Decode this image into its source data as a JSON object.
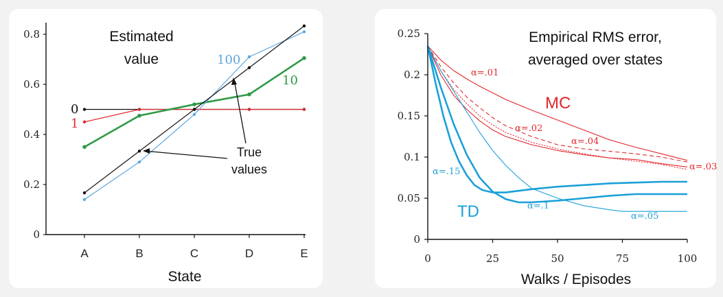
{
  "colors": {
    "black": "#111111",
    "red": "#e0262b",
    "green": "#2e9a47",
    "lightblue": "#5ea7de",
    "td_blue": "#1aa0d8"
  },
  "chart_data": [
    {
      "type": "line",
      "xlabel": "State",
      "categories": [
        "A",
        "B",
        "C",
        "D",
        "E"
      ],
      "ylim": [
        0,
        0.85
      ],
      "yticks": [
        "0",
        "0.2",
        "0.4",
        "0.6",
        "0.8"
      ],
      "annotations": {
        "title": [
          "Estimated",
          "value"
        ],
        "true_values": [
          "True",
          "values"
        ],
        "label_0": "0",
        "label_1": "1",
        "label_10": "10",
        "label_100": "100"
      },
      "series": [
        {
          "name": "0",
          "color": "#111111",
          "values": [
            0.5,
            0.5,
            0.5,
            0.5,
            0.5
          ]
        },
        {
          "name": "1",
          "color": "#e0262b",
          "values": [
            0.45,
            0.5,
            0.5,
            0.5,
            0.5
          ]
        },
        {
          "name": "10",
          "color": "#2e9a47",
          "values": [
            0.35,
            0.475,
            0.52,
            0.56,
            0.705
          ]
        },
        {
          "name": "100",
          "color": "#5ea7de",
          "values": [
            0.14,
            0.29,
            0.48,
            0.71,
            0.81
          ]
        },
        {
          "name": "True values",
          "color": "#111111",
          "values": [
            0.1667,
            0.3333,
            0.5,
            0.6667,
            0.8333
          ]
        }
      ]
    },
    {
      "type": "line",
      "xlabel": "Walks / Episodes",
      "xlim": [
        0,
        100
      ],
      "ylim": [
        0,
        0.25
      ],
      "xticks": [
        "0",
        "25",
        "50",
        "75",
        "100"
      ],
      "yticks": [
        "0",
        "0.05",
        "0.1",
        "0.15",
        "0.2",
        "0.25"
      ],
      "annotations": {
        "title": [
          "Empirical RMS error,",
          "averaged over states"
        ],
        "mc": "MC",
        "td": "TD",
        "mc_a01": "α=.01",
        "mc_a02": "α=.02",
        "mc_a03": "α=.03",
        "mc_a04": "α=.04",
        "td_a15": "α=.15",
        "td_a1": "α=.1",
        "td_a05": "α=.05"
      },
      "series": [
        {
          "name": "MC α=.01",
          "color": "#e0262b",
          "x": [
            0,
            5,
            10,
            15,
            20,
            25,
            30,
            40,
            50,
            60,
            70,
            80,
            90,
            100
          ],
          "values": [
            0.235,
            0.218,
            0.205,
            0.195,
            0.186,
            0.178,
            0.17,
            0.157,
            0.145,
            0.133,
            0.121,
            0.112,
            0.104,
            0.096
          ]
        },
        {
          "name": "MC α=.02",
          "color": "#e0262b",
          "x": [
            0,
            5,
            10,
            15,
            20,
            25,
            30,
            40,
            50,
            60,
            70,
            80,
            90,
            100
          ],
          "values": [
            0.235,
            0.21,
            0.19,
            0.173,
            0.16,
            0.148,
            0.138,
            0.125,
            0.115,
            0.11,
            0.107,
            0.104,
            0.1,
            0.094
          ]
        },
        {
          "name": "MC α=.03",
          "color": "#e0262b",
          "x": [
            0,
            5,
            10,
            15,
            20,
            25,
            30,
            40,
            50,
            60,
            70,
            80,
            90,
            100
          ],
          "values": [
            0.235,
            0.205,
            0.182,
            0.165,
            0.15,
            0.139,
            0.13,
            0.118,
            0.11,
            0.104,
            0.099,
            0.095,
            0.091,
            0.085
          ]
        },
        {
          "name": "MC α=.04",
          "color": "#e0262b",
          "x": [
            0,
            5,
            10,
            15,
            20,
            25,
            30,
            40,
            50,
            60,
            70,
            80,
            90,
            100
          ],
          "values": [
            0.235,
            0.2,
            0.175,
            0.158,
            0.144,
            0.133,
            0.125,
            0.115,
            0.108,
            0.103,
            0.099,
            0.097,
            0.092,
            0.088
          ]
        },
        {
          "name": "TD α=.15",
          "color": "#1aa0d8",
          "x": [
            0,
            3,
            6,
            9,
            12,
            15,
            18,
            21,
            25,
            30,
            35,
            40,
            50,
            60,
            70,
            80,
            90,
            100
          ],
          "values": [
            0.235,
            0.19,
            0.15,
            0.118,
            0.095,
            0.078,
            0.066,
            0.06,
            0.057,
            0.057,
            0.059,
            0.061,
            0.064,
            0.066,
            0.068,
            0.069,
            0.07,
            0.07
          ]
        },
        {
          "name": "TD α=.1",
          "color": "#1aa0d8",
          "x": [
            0,
            5,
            10,
            15,
            20,
            25,
            30,
            35,
            40,
            50,
            60,
            70,
            80,
            90,
            100
          ],
          "values": [
            0.235,
            0.185,
            0.14,
            0.103,
            0.075,
            0.058,
            0.049,
            0.045,
            0.045,
            0.047,
            0.05,
            0.053,
            0.055,
            0.055,
            0.055
          ]
        },
        {
          "name": "TD α=.05",
          "color": "#1aa0d8",
          "x": [
            0,
            5,
            10,
            15,
            20,
            25,
            30,
            35,
            40,
            50,
            60,
            70,
            75,
            80,
            90,
            100
          ],
          "values": [
            0.235,
            0.205,
            0.18,
            0.155,
            0.13,
            0.108,
            0.09,
            0.075,
            0.062,
            0.05,
            0.041,
            0.036,
            0.034,
            0.034,
            0.034,
            0.034
          ]
        }
      ]
    }
  ]
}
